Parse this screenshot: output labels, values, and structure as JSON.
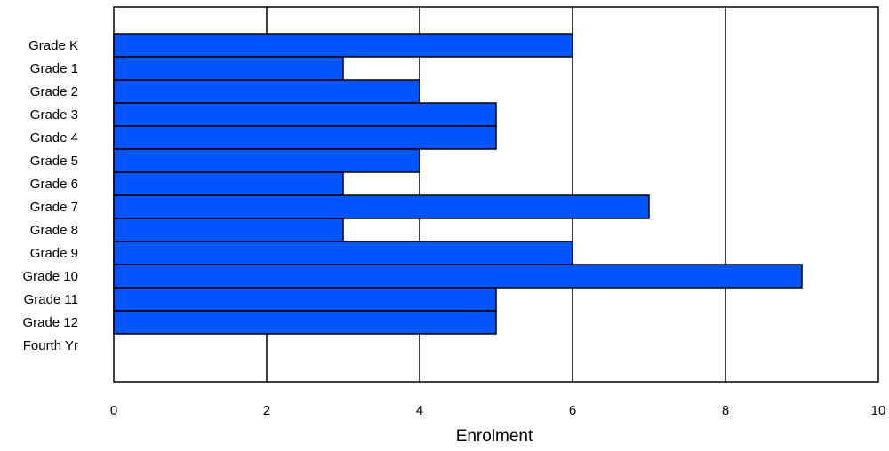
{
  "chart_data": {
    "type": "bar",
    "orientation": "horizontal",
    "categories": [
      "Grade K",
      "Grade 1",
      "Grade 2",
      "Grade 3",
      "Grade 4",
      "Grade 5",
      "Grade 6",
      "Grade 7",
      "Grade 8",
      "Grade 9",
      "Grade 10",
      "Grade 11",
      "Grade 12",
      "Fourth Yr"
    ],
    "values": [
      6,
      3,
      4,
      5,
      5,
      4,
      3,
      7,
      3,
      6,
      9,
      5,
      5,
      0
    ],
    "title": "",
    "xlabel": "Enrolment",
    "ylabel": "",
    "xlim": [
      0,
      10
    ],
    "x_ticks": [
      0,
      2,
      4,
      6,
      8,
      10
    ],
    "x_tick_labels": [
      "0",
      "2",
      "4",
      "6",
      "8",
      "10"
    ],
    "grid": "vertical",
    "legend": "none",
    "bar_color": "#0055ff",
    "edge_color": "#000000"
  }
}
